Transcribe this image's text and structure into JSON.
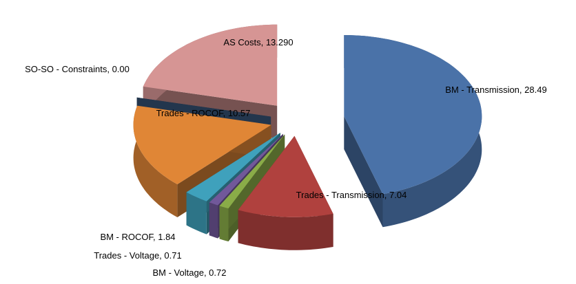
{
  "chart_data": {
    "type": "pie3d",
    "categories": [
      "BM - Transmission",
      "Trades - Transmission",
      "BM - Voltage",
      "Trades - Voltage",
      "BM - ROCOF",
      "Trades - ROCOF",
      "SO-SO - Constraints",
      "AS Costs"
    ],
    "values": [
      28.49,
      7.04,
      0.72,
      0.71,
      1.84,
      10.57,
      0,
      13.29
    ],
    "value_labels": [
      "28.49",
      "7.04",
      "0.72",
      "0.71",
      "1.84",
      "10.57",
      "0.00",
      "13.290"
    ],
    "colors": [
      "#4a72a8",
      "#b0413e",
      "#8aac48",
      "#71589a",
      "#3fa1bc",
      "#e08636",
      "#3a5a80",
      "#d69594"
    ]
  }
}
